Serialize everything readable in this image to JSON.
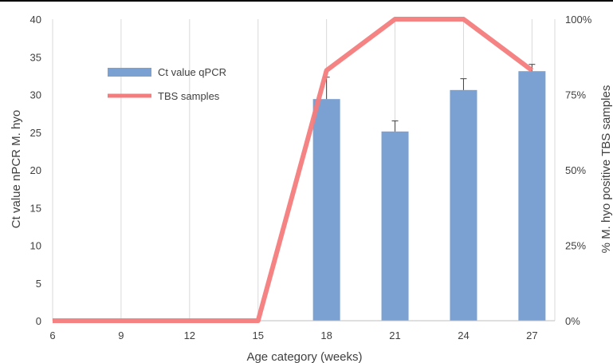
{
  "chart_data": {
    "type": "bar",
    "title": "",
    "xlabel": "Age category (weeks)",
    "ylabel": "Ct value nPCR M. hyo",
    "y2label": "% M. hyo positive TBS samples",
    "x_ticks": [
      6,
      9,
      12,
      15,
      18,
      21,
      24,
      27
    ],
    "xlim": [
      6,
      28
    ],
    "ylim": [
      0,
      40
    ],
    "y_ticks": [
      0,
      5,
      10,
      15,
      20,
      25,
      30,
      35,
      40
    ],
    "y2lim": [
      0,
      100
    ],
    "y2_ticks": [
      "0%",
      "25%",
      "50%",
      "75%",
      "100%"
    ],
    "grid": "vertical",
    "legend_position": "top-left",
    "bar_series": {
      "name": "Ct value qPCR",
      "color": "#7ba1d2",
      "x": [
        18,
        21,
        24,
        27
      ],
      "values": [
        29.4,
        25.1,
        30.6,
        33.1
      ],
      "errors": [
        2.9,
        1.4,
        1.5,
        0.9
      ]
    },
    "line_series": {
      "name": "TBS samples",
      "color": "#f47c7c",
      "x": [
        6,
        9,
        12,
        15,
        18,
        21,
        24,
        27
      ],
      "values": [
        0,
        0,
        0,
        0,
        83,
        100,
        100,
        83
      ]
    }
  }
}
